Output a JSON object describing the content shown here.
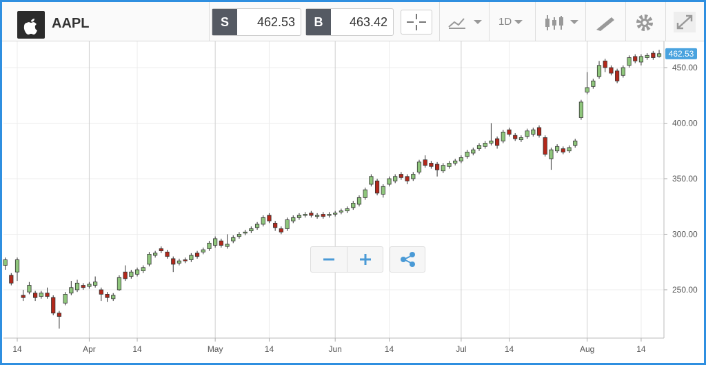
{
  "toolbar": {
    "symbol": "AAPL",
    "sell": {
      "label": "S",
      "price": "462.53"
    },
    "buy": {
      "label": "B",
      "price": "463.42"
    },
    "interval": "1D"
  },
  "chart_data": {
    "type": "candlestick",
    "x": [
      -2,
      -1,
      0,
      1,
      2,
      3,
      4,
      5,
      6,
      7,
      8,
      9,
      10,
      11,
      12,
      13,
      14,
      15,
      16,
      17,
      18,
      19,
      20,
      21,
      22,
      23,
      24,
      25,
      26,
      27,
      28,
      29,
      30,
      31,
      32,
      33,
      34,
      35,
      36,
      37,
      38,
      39,
      40,
      41,
      42,
      43,
      44,
      45,
      46,
      47,
      48,
      49,
      50,
      51,
      52,
      53,
      54,
      55,
      56,
      57,
      58,
      59,
      60,
      61,
      62,
      63,
      64,
      65,
      66,
      67,
      68,
      69,
      70,
      71,
      72,
      73,
      74,
      75,
      76,
      77,
      78,
      79,
      80,
      81,
      82,
      83,
      84,
      85,
      86,
      87,
      88,
      89,
      90,
      91,
      92,
      93,
      94,
      95,
      96,
      97,
      98,
      99,
      100,
      101,
      102,
      103,
      104,
      105,
      106,
      107
    ],
    "open": [
      272,
      263,
      266,
      245,
      248,
      247,
      244,
      247,
      243,
      229,
      238,
      247,
      250,
      254,
      253,
      254,
      250,
      246,
      242,
      250,
      266,
      262,
      264,
      267,
      273,
      281,
      287,
      284,
      278,
      274,
      277,
      277,
      283,
      284,
      287,
      290,
      294,
      289,
      294,
      298,
      301,
      303,
      306,
      309,
      317,
      310,
      305,
      305,
      312,
      315,
      317,
      319,
      316,
      318,
      317,
      318,
      320,
      321,
      324,
      327,
      333,
      345,
      348,
      336,
      345,
      348,
      354,
      352,
      350,
      356,
      367,
      364,
      363,
      357,
      361,
      364,
      366,
      370,
      373,
      377,
      379,
      382,
      386,
      384,
      394,
      389,
      385,
      388,
      390,
      396,
      387,
      368,
      375,
      377,
      375,
      380,
      405,
      428,
      433,
      442,
      456,
      450,
      447,
      443,
      452,
      460,
      455,
      459,
      463,
      460
    ],
    "high": [
      279,
      265,
      279,
      250,
      257,
      249,
      249,
      252,
      245,
      231,
      248,
      258,
      259,
      256,
      257,
      262,
      252,
      248,
      247,
      263,
      272,
      268,
      270,
      272,
      284,
      285,
      289,
      286,
      280,
      278,
      279,
      283,
      285,
      288,
      294,
      298,
      296,
      300,
      299,
      302,
      304,
      307,
      311,
      317,
      319,
      312,
      307,
      315,
      317,
      319,
      320,
      321,
      319,
      320,
      320,
      321,
      323,
      325,
      330,
      335,
      342,
      354,
      350,
      345,
      352,
      354,
      356,
      354,
      356,
      367,
      371,
      366,
      365,
      364,
      366,
      368,
      371,
      376,
      378,
      382,
      384,
      400,
      388,
      394,
      396,
      391,
      389,
      395,
      396,
      398,
      389,
      378,
      381,
      379,
      380,
      386,
      421,
      446,
      440,
      456,
      458,
      452,
      449,
      452,
      461,
      462,
      462,
      463,
      465,
      466
    ],
    "low": [
      268,
      254,
      258,
      240,
      246,
      240,
      242,
      242,
      227,
      215,
      236,
      245,
      248,
      250,
      251,
      252,
      240,
      239,
      240,
      249,
      258,
      260,
      262,
      265,
      271,
      279,
      283,
      278,
      266,
      272,
      274,
      275,
      278,
      282,
      285,
      288,
      288,
      287,
      292,
      296,
      299,
      301,
      304,
      307,
      310,
      303,
      300,
      303,
      310,
      313,
      315,
      315,
      314,
      314,
      315,
      316,
      318,
      319,
      322,
      325,
      331,
      343,
      335,
      333,
      343,
      346,
      349,
      345,
      348,
      354,
      360,
      359,
      352,
      355,
      359,
      362,
      364,
      368,
      371,
      375,
      377,
      380,
      377,
      382,
      388,
      384,
      383,
      386,
      388,
      387,
      370,
      358,
      373,
      372,
      373,
      378,
      403,
      426,
      431,
      440,
      446,
      443,
      436,
      441,
      450,
      454,
      452,
      457,
      457,
      459
    ],
    "close": [
      277,
      256,
      277,
      243,
      254,
      243,
      247,
      244,
      229,
      226,
      246,
      252,
      256,
      252,
      255,
      257,
      246,
      243,
      245,
      261,
      260,
      266,
      268,
      270,
      282,
      283,
      285,
      280,
      273,
      276,
      276,
      281,
      280,
      286,
      292,
      296,
      290,
      291,
      297,
      300,
      302,
      305,
      309,
      315,
      312,
      306,
      302,
      313,
      315,
      317,
      318,
      317,
      317,
      316,
      318,
      319,
      321,
      323,
      328,
      333,
      340,
      352,
      337,
      343,
      350,
      352,
      351,
      348,
      354,
      365,
      362,
      361,
      358,
      362,
      364,
      366,
      369,
      374,
      376,
      380,
      382,
      384,
      380,
      392,
      390,
      386,
      387,
      393,
      394,
      389,
      372,
      376,
      379,
      374,
      378,
      384,
      419,
      432,
      438,
      452,
      450,
      445,
      438,
      450,
      459,
      456,
      460,
      461,
      459,
      462.53
    ],
    "up_color": "#8fc67c",
    "down_color": "#b3281b",
    "xlim": [
      -2.3,
      107.8
    ],
    "xticks": [
      {
        "value": 0,
        "label": "14"
      },
      {
        "value": 12,
        "label": "Apr"
      },
      {
        "value": 20,
        "label": "14"
      },
      {
        "value": 33,
        "label": "May"
      },
      {
        "value": 42,
        "label": "14"
      },
      {
        "value": 53,
        "label": "Jun"
      },
      {
        "value": 62,
        "label": "14"
      },
      {
        "value": 74,
        "label": "Jul"
      },
      {
        "value": 82,
        "label": "14"
      },
      {
        "value": 95,
        "label": "Aug"
      },
      {
        "value": 104,
        "label": "14"
      }
    ],
    "ylim": [
      206.5,
      473.6
    ],
    "yticks": [
      {
        "value": 250,
        "label": "250.00"
      },
      {
        "value": 300,
        "label": "300.00"
      },
      {
        "value": 350,
        "label": "350.00"
      },
      {
        "value": 400,
        "label": "400.00"
      },
      {
        "value": 450,
        "label": "450.00"
      }
    ],
    "grid": true
  }
}
